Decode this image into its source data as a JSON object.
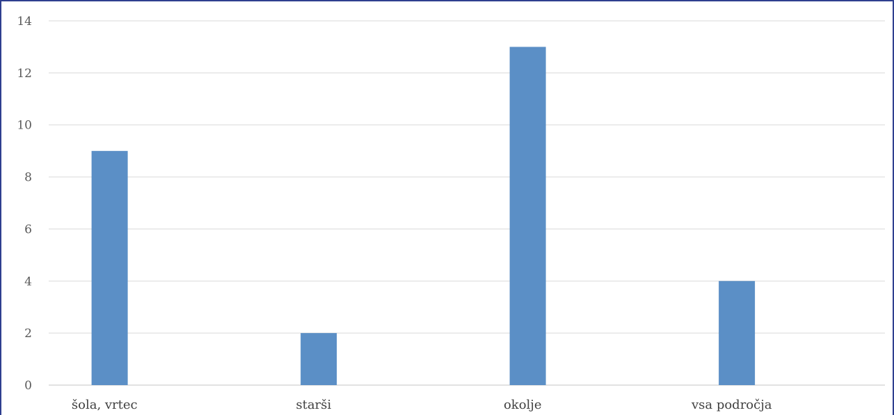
{
  "chart_data": {
    "type": "bar",
    "title": "",
    "xlabel": "",
    "ylabel": "",
    "categories": [
      "šola, vrtec",
      "starši",
      "okolje",
      "vsa področja"
    ],
    "values": [
      9,
      2,
      13,
      4
    ],
    "ylim": [
      0,
      14
    ],
    "yticks": [
      "0",
      "2",
      "4",
      "6",
      "8",
      "10",
      "12",
      "14"
    ],
    "grid": true,
    "legend": "none",
    "colors": {
      "bar": "#5b8fc6",
      "grid": "#d9d9d9",
      "frame": "#2f3f8f"
    }
  }
}
